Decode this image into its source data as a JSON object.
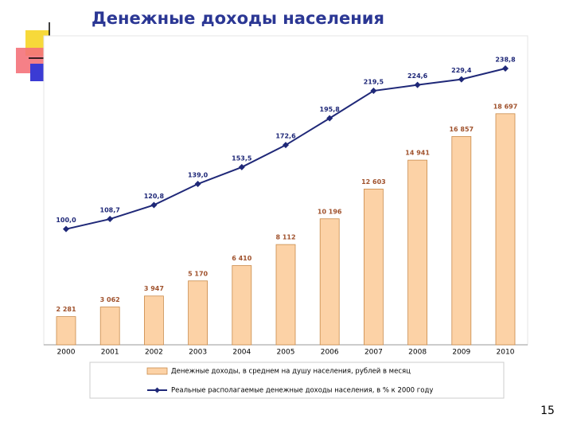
{
  "chart_data": {
    "type": "bar_line",
    "title": "Денежные доходы населения",
    "page_number": "15",
    "categories": [
      "2000",
      "2001",
      "2002",
      "2003",
      "2004",
      "2005",
      "2006",
      "2007",
      "2008",
      "2009",
      "2010"
    ],
    "ylim": [
      0,
      25000
    ],
    "y2lim": [
      0,
      267
    ],
    "series": [
      {
        "name": "Денежные доходы, в среднем на душу населения, рублей в месяц",
        "type": "bar",
        "color": "#fcd2a6",
        "values": [
          2281,
          3062,
          3947,
          5170,
          6410,
          8112,
          10196,
          12603,
          14941,
          16857,
          18697
        ],
        "value_labels": [
          "2 281",
          "3 062",
          "3 947",
          "5 170",
          "6 410",
          "8 112",
          "10 196",
          "12 603",
          "14 941",
          "16 857",
          "18 697"
        ]
      },
      {
        "name": "Реальные располагаемые денежные доходы населения, в % к 2000 году",
        "type": "line",
        "axis": "y2",
        "color": "#1f2878",
        "values": [
          100.0,
          108.7,
          120.8,
          139.0,
          153.5,
          172.6,
          195.8,
          219.5,
          224.6,
          229.4,
          238.8
        ],
        "value_labels": [
          "100,0",
          "108,7",
          "120,8",
          "139,0",
          "153,5",
          "172,6",
          "195,8",
          "219,5",
          "224,6",
          "229,4",
          "238,8"
        ]
      }
    ]
  }
}
